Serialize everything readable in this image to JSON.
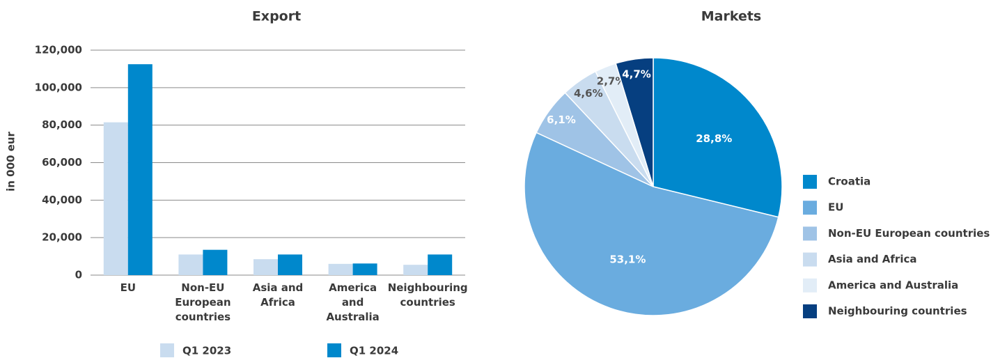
{
  "chart_data": [
    {
      "type": "bar",
      "title": "Export",
      "y_label": "in 000 eur",
      "categories": [
        "EU",
        "Non-EU European countries",
        "Asia and Africa",
        "America and Australia",
        "Neighbouring countries"
      ],
      "series": [
        {
          "name": "Q1 2023",
          "color": "#c9dcef",
          "values": [
            81500,
            11000,
            8500,
            6000,
            5500
          ]
        },
        {
          "name": "Q1 2024",
          "color": "#0088cc",
          "values": [
            112500,
            13500,
            11000,
            6200,
            11000
          ]
        }
      ],
      "ylim": [
        0,
        120000
      ],
      "yticks": [
        0,
        {
          "value": 20000,
          "label": "20,000"
        },
        {
          "value": 40000,
          "label": "40,000"
        },
        {
          "value": 60000,
          "label": "60,000"
        },
        {
          "value": 80000,
          "label": "80,000"
        },
        {
          "value": 100000,
          "label": "100,000"
        },
        {
          "value": 120000,
          "label": "120,000"
        }
      ],
      "grid": true,
      "legend": "bottom"
    },
    {
      "type": "pie",
      "title": "Markets",
      "categories": [
        "Croatia",
        "EU",
        "Non-EU European countries",
        "Asia and Africa",
        "America and Australia",
        "Neighbouring countries"
      ],
      "values": [
        28.8,
        53.1,
        6.1,
        4.6,
        2.7,
        4.7
      ],
      "value_labels": [
        "28,8%",
        "53,1%",
        "6,1%",
        "4,6%",
        "2,7%",
        "4,7%"
      ],
      "colors": [
        "#0088cc",
        "#6aacdf",
        "#9fc3e6",
        "#c9dcef",
        "#e2edf7",
        "#063f80"
      ],
      "legend": "right"
    }
  ]
}
